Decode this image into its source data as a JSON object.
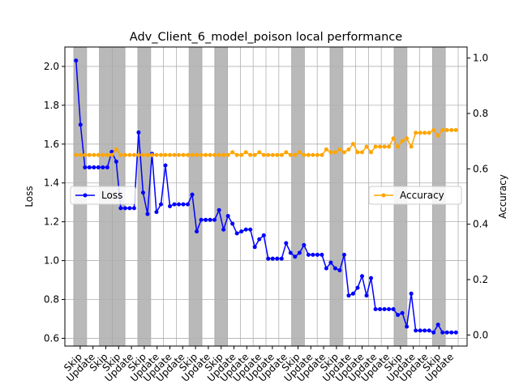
{
  "chart_data": {
    "type": "line",
    "title": "Adv_Client_6_model_poison local performance",
    "ylabel_left": "Loss",
    "ylabel_right": "Accuracy",
    "ylim_left": [
      0.56,
      2.1
    ],
    "ylim_right": [
      -0.04,
      1.04
    ],
    "yticks_left": [
      "0.6",
      "0.8",
      "1.0",
      "1.2",
      "1.4",
      "1.6",
      "1.8",
      "2.0"
    ],
    "yticks_right": [
      "0.0",
      "0.2",
      "0.4",
      "0.6",
      "0.8",
      "1.0"
    ],
    "grid": true,
    "x_tick_labels": [
      "Skip",
      "Update",
      "Skip",
      "Skip",
      "Update",
      "Skip",
      "Update",
      "Update",
      "Update",
      "Skip",
      "Update",
      "Skip",
      "Update",
      "Update",
      "Update",
      "Update",
      "Update",
      "Skip",
      "Update",
      "Update",
      "Skip",
      "Update",
      "Update",
      "Update",
      "Update",
      "Skip",
      "Update",
      "Update",
      "Skip",
      "Update"
    ],
    "skip_rounds": [
      0,
      2,
      3,
      5,
      9,
      11,
      17,
      20,
      25,
      28
    ],
    "series": [
      {
        "name": "Loss",
        "axis": "left",
        "color": "#0000ff",
        "legend_position": "center-left",
        "values": [
          2.03,
          1.7,
          1.48,
          1.48,
          1.48,
          1.48,
          1.48,
          1.48,
          1.56,
          1.51,
          1.27,
          1.27,
          1.27,
          1.27,
          1.66,
          1.35,
          1.24,
          1.55,
          1.25,
          1.29,
          1.49,
          1.28,
          1.29,
          1.29,
          1.29,
          1.29,
          1.34,
          1.15,
          1.21,
          1.21,
          1.21,
          1.21,
          1.26,
          1.16,
          1.23,
          1.19,
          1.14,
          1.15,
          1.16,
          1.16,
          1.07,
          1.11,
          1.13,
          1.01,
          1.01,
          1.01,
          1.01,
          1.09,
          1.04,
          1.02,
          1.04,
          1.08,
          1.03,
          1.03,
          1.03,
          1.03,
          0.96,
          0.99,
          0.96,
          0.95,
          1.03,
          0.82,
          0.83,
          0.86,
          0.92,
          0.82,
          0.91,
          0.75,
          0.75,
          0.75,
          0.75,
          0.75,
          0.72,
          0.73,
          0.66,
          0.83,
          0.64,
          0.64,
          0.64,
          0.64,
          0.63,
          0.67,
          0.63,
          0.63,
          0.63,
          0.63
        ]
      },
      {
        "name": "Accuracy",
        "axis": "right",
        "color": "#ffa500",
        "legend_position": "center-right",
        "values": [
          0.65,
          0.65,
          0.65,
          0.65,
          0.65,
          0.65,
          0.65,
          0.65,
          0.65,
          0.67,
          0.65,
          0.65,
          0.65,
          0.65,
          0.65,
          0.65,
          0.65,
          0.65,
          0.65,
          0.65,
          0.65,
          0.65,
          0.65,
          0.65,
          0.65,
          0.65,
          0.65,
          0.65,
          0.65,
          0.65,
          0.65,
          0.65,
          0.65,
          0.65,
          0.65,
          0.66,
          0.65,
          0.65,
          0.66,
          0.65,
          0.65,
          0.66,
          0.65,
          0.65,
          0.65,
          0.65,
          0.65,
          0.66,
          0.65,
          0.65,
          0.66,
          0.65,
          0.65,
          0.65,
          0.65,
          0.65,
          0.67,
          0.66,
          0.66,
          0.67,
          0.66,
          0.67,
          0.69,
          0.66,
          0.66,
          0.68,
          0.66,
          0.68,
          0.68,
          0.68,
          0.68,
          0.71,
          0.68,
          0.7,
          0.71,
          0.68,
          0.73,
          0.73,
          0.73,
          0.73,
          0.74,
          0.72,
          0.74,
          0.74,
          0.74,
          0.74
        ]
      }
    ]
  }
}
